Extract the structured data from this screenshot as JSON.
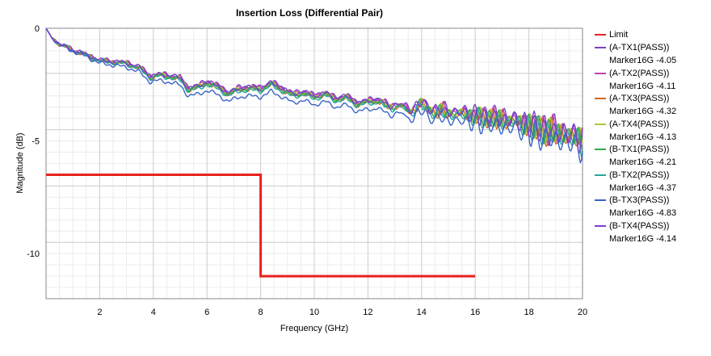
{
  "chart_data": {
    "type": "line",
    "title": "Insertion Loss (Differential Pair)",
    "xlabel": "Frequency (GHz)",
    "ylabel": "Magnitude (dB)",
    "xlim": [
      0,
      20
    ],
    "ylim": [
      -12,
      0
    ],
    "x_ticks": [
      2,
      4,
      6,
      8,
      10,
      12,
      14,
      16,
      18,
      20
    ],
    "y_ticks": [
      0,
      -5,
      -10
    ],
    "x_tick_labels": [
      "2",
      "4",
      "6",
      "8",
      "10",
      "12",
      "14",
      "16",
      "18",
      "20"
    ],
    "y_tick_labels": [
      "0",
      "-5",
      "-10"
    ],
    "grid": true,
    "legend_position": "right",
    "limit": {
      "name": "Limit",
      "color": "#e8211d",
      "x": [
        0,
        8,
        8,
        16
      ],
      "y": [
        -6.5,
        -6.5,
        -11,
        -11
      ]
    },
    "series": [
      {
        "name": "(A-TX1(PASS))",
        "marker": "Marker16G -4.05",
        "color": "#7a3fbf",
        "offset": 0.0,
        "noise": 0.0
      },
      {
        "name": "(A-TX2(PASS))",
        "marker": "Marker16G -4.11",
        "color": "#c63fb0",
        "offset": -0.05,
        "noise": 0.3
      },
      {
        "name": "(A-TX3(PASS))",
        "marker": "Marker16G -4.32",
        "color": "#d2691e",
        "offset": -0.15,
        "noise": 0.6
      },
      {
        "name": "(A-TX4(PASS))",
        "marker": "Marker16G -4.13",
        "color": "#b5c23a",
        "offset": -0.08,
        "noise": 0.9
      },
      {
        "name": "(B-TX1(PASS))",
        "marker": "Marker16G -4.21",
        "color": "#35a845",
        "offset": -0.12,
        "noise": 1.2
      },
      {
        "name": "(B-TX2(PASS))",
        "marker": "Marker16G -4.37",
        "color": "#25a79a",
        "offset": -0.2,
        "noise": 1.5
      },
      {
        "name": "(B-TX3(PASS))",
        "marker": "Marker16G -4.83",
        "color": "#3a63c8",
        "offset": -0.45,
        "noise": 1.8
      },
      {
        "name": "(B-TX4(PASS))",
        "marker": "Marker16G -4.14",
        "color": "#7b3fd0",
        "offset": -0.06,
        "noise": 2.1
      }
    ],
    "base_curve": {
      "x": [
        0,
        0.2,
        0.5,
        1,
        1.5,
        2,
        2.5,
        3,
        3.5,
        3.9,
        4.2,
        4.6,
        5,
        5.3,
        5.7,
        6,
        6.4,
        6.8,
        7.2,
        7.6,
        8,
        8.4,
        8.8,
        9.2,
        9.6,
        10,
        10.4,
        10.8,
        11.2,
        11.6,
        12,
        12.4,
        12.8,
        13.2,
        13.6,
        14,
        14.4,
        14.8,
        15.2,
        15.6,
        16,
        16.5,
        17,
        17.5,
        18,
        18.5,
        19,
        19.5,
        20
      ],
      "y": [
        0,
        -0.4,
        -0.7,
        -0.95,
        -1.15,
        -1.4,
        -1.45,
        -1.5,
        -1.7,
        -2.1,
        -2.0,
        -2.05,
        -2.15,
        -2.6,
        -2.5,
        -2.3,
        -2.5,
        -2.8,
        -2.6,
        -2.55,
        -2.6,
        -2.35,
        -2.6,
        -2.85,
        -2.75,
        -2.95,
        -2.8,
        -3.05,
        -2.95,
        -3.25,
        -3.15,
        -3.1,
        -3.4,
        -3.3,
        -3.6,
        -3.2,
        -3.6,
        -3.55,
        -3.7,
        -3.65,
        -3.8,
        -3.85,
        -3.95,
        -4.0,
        -4.2,
        -4.4,
        -4.5,
        -4.65,
        -4.8
      ]
    }
  }
}
